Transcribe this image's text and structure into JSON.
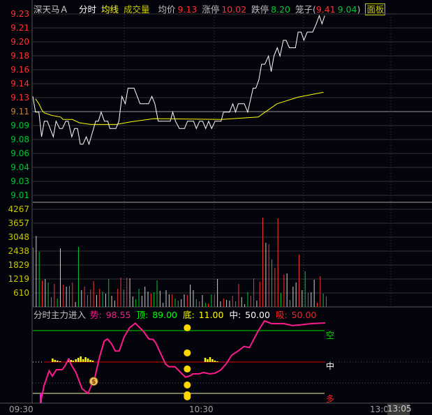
{
  "header": {
    "stock_name": "深天马Ａ",
    "mode": "分时",
    "avg_line_label": "均线",
    "volume_label": "成交量",
    "avg_price_label": "均价",
    "avg_price": "9.13",
    "limit_up_label": "涨停",
    "limit_up": "10.02",
    "limit_down_label": "跌停",
    "limit_down": "8.20",
    "cage_label": "笼子(",
    "cage_high": "9.41",
    "cage_low": "9.04",
    "cage_close": ")",
    "panel_button": "面板"
  },
  "colors": {
    "up": "#ff3232",
    "down": "#00c832",
    "flat": "#d0d0d0",
    "price_line": "#ffffff",
    "avg_line": "#ffff00",
    "indicator_line": "#ff1a8c",
    "top_line": "#00e000",
    "mid_line": "#e00000",
    "bottom_line": "#ffff00"
  },
  "price_axis": [
    "9.23",
    "9.21",
    "9.20",
    "9.18",
    "9.16",
    "9.14",
    "9.13",
    "9.11",
    "9.09",
    "9.08",
    "9.06",
    "9.04",
    "9.03",
    "9.01"
  ],
  "volume_axis": [
    "4267",
    "3657",
    "3048",
    "2438",
    "1829",
    "1219",
    "610"
  ],
  "time_axis": {
    "labels": [
      "09:30",
      "10:30",
      "13:0"
    ],
    "cursor_time": "13:05"
  },
  "indicator": {
    "title": "分时主力进入",
    "trend_label": "势:",
    "trend_value": "98.55",
    "top_label": "顶:",
    "top_value": "89.00",
    "bottom_label": "底:",
    "bottom_value": "11.00",
    "mid_label": "中:",
    "mid_value": "50.00",
    "absorb_label": "吸:",
    "absorb_value": "50.00",
    "side_labels": [
      "空",
      "中",
      "多"
    ],
    "series": [
      [
        2.6,
        0
      ],
      [
        3.7,
        20.3
      ],
      [
        5.4,
        39
      ],
      [
        6.5,
        32.4
      ],
      [
        7.8,
        40.5
      ],
      [
        9.7,
        40.5
      ],
      [
        10.6,
        44.8
      ],
      [
        11.8,
        53.5
      ],
      [
        13,
        44.8
      ],
      [
        14.2,
        37.6
      ],
      [
        16.3,
        16.8
      ],
      [
        18.3,
        11
      ],
      [
        20.6,
        31.8
      ],
      [
        22,
        54.9
      ],
      [
        23.6,
        75.7
      ],
      [
        24.7,
        78.6
      ],
      [
        26.1,
        72.3
      ],
      [
        27.3,
        63.6
      ],
      [
        28.6,
        63.6
      ],
      [
        30.2,
        80.9
      ],
      [
        32,
        92.5
      ],
      [
        33.9,
        98.3
      ],
      [
        36.6,
        88.1
      ],
      [
        38.4,
        78.6
      ],
      [
        39.8,
        78
      ],
      [
        40.7,
        73.7
      ],
      [
        43.9,
        47.7
      ],
      [
        45,
        44.2
      ],
      [
        47,
        44.2
      ],
      [
        50.5,
        31.2
      ],
      [
        52.1,
        32.9
      ],
      [
        53,
        35.3
      ],
      [
        55,
        35.3
      ],
      [
        56.5,
        37
      ],
      [
        58.5,
        35.3
      ],
      [
        60.3,
        36.1
      ],
      [
        62.1,
        39.9
      ],
      [
        64,
        47.7
      ],
      [
        65.8,
        58.4
      ],
      [
        68.1,
        64.1
      ],
      [
        69.9,
        69.3
      ],
      [
        71.7,
        67.9
      ],
      [
        74.5,
        88.1
      ],
      [
        76.7,
        101.1
      ],
      [
        79,
        97.7
      ],
      [
        83.1,
        97.7
      ],
      [
        85.9,
        95.3
      ],
      [
        88.6,
        96.2
      ],
      [
        92.2,
        97.7
      ],
      [
        96.8,
        98.5
      ]
    ],
    "signal_bars": [
      [
        6.5,
        5
      ],
      [
        7.3,
        3
      ],
      [
        8.1,
        2
      ],
      [
        9,
        1
      ],
      [
        11.8,
        5
      ],
      [
        12.6,
        3
      ],
      [
        13.3,
        2
      ],
      [
        14.2,
        4
      ],
      [
        15,
        6
      ],
      [
        15.8,
        8
      ],
      [
        16.6,
        4
      ],
      [
        17.4,
        7
      ],
      [
        18.2,
        5
      ],
      [
        19,
        3
      ],
      [
        19.8,
        2
      ],
      [
        57,
        6
      ],
      [
        57.8,
        4
      ],
      [
        58.6,
        7
      ],
      [
        59.4,
        4
      ],
      [
        60.2,
        2
      ],
      [
        61,
        1
      ]
    ],
    "signal_dots": {
      "minute": 51,
      "values": [
        92.5,
        61.3,
        41.3,
        21.4,
        9.3,
        6.7
      ]
    },
    "money_bag": {
      "minute": 20,
      "value": 26
    },
    "reference_dotted": 24
  },
  "chart_data": {
    "type": "line",
    "price_series": [
      [
        0,
        9.13
      ],
      [
        0.9,
        9.111
      ],
      [
        2,
        9.111
      ],
      [
        2.9,
        9.081
      ],
      [
        3.8,
        9.1
      ],
      [
        4.8,
        9.1
      ],
      [
        6.8,
        9.081
      ],
      [
        7.7,
        9.1
      ],
      [
        8.9,
        9.091
      ],
      [
        9.8,
        9.091
      ],
      [
        10.9,
        9.1
      ],
      [
        11.7,
        9.1
      ],
      [
        12.9,
        9.081
      ],
      [
        13.8,
        9.091
      ],
      [
        14.8,
        9.091
      ],
      [
        15.7,
        9.072
      ],
      [
        16.6,
        9.072
      ],
      [
        17.7,
        9.081
      ],
      [
        18.6,
        9.072
      ],
      [
        20.8,
        9.1
      ],
      [
        21.7,
        9.1
      ],
      [
        22.6,
        9.111
      ],
      [
        23.7,
        9.1
      ],
      [
        24.8,
        9.1
      ],
      [
        25.5,
        9.091
      ],
      [
        27.5,
        9.091
      ],
      [
        28.5,
        9.1
      ],
      [
        29.5,
        9.13
      ],
      [
        30.6,
        9.121
      ],
      [
        31.5,
        9.14
      ],
      [
        33.5,
        9.14
      ],
      [
        35.5,
        9.121
      ],
      [
        38.3,
        9.121
      ],
      [
        39.4,
        9.13
      ],
      [
        40.4,
        9.121
      ],
      [
        41.5,
        9.1
      ],
      [
        45.5,
        9.1
      ],
      [
        46.3,
        9.111
      ],
      [
        47.2,
        9.1
      ],
      [
        48.5,
        9.091
      ],
      [
        50.2,
        9.091
      ],
      [
        51.2,
        9.1
      ],
      [
        53.2,
        9.1
      ],
      [
        54.1,
        9.091
      ],
      [
        55.2,
        9.1
      ],
      [
        56.2,
        9.1
      ],
      [
        57.2,
        9.091
      ],
      [
        58.2,
        9.1
      ],
      [
        59.2,
        9.091
      ],
      [
        60.3,
        9.1
      ],
      [
        62.3,
        9.1
      ],
      [
        63.1,
        9.111
      ],
      [
        65.1,
        9.111
      ],
      [
        66.2,
        9.121
      ],
      [
        67.1,
        9.111
      ],
      [
        68,
        9.121
      ],
      [
        70,
        9.121
      ],
      [
        71.1,
        9.111
      ],
      [
        72.9,
        9.14
      ],
      [
        73.8,
        9.14
      ],
      [
        74.8,
        9.15
      ],
      [
        75.7,
        9.169
      ],
      [
        76.8,
        9.169
      ],
      [
        78,
        9.179
      ],
      [
        78.9,
        9.16
      ],
      [
        79.8,
        9.179
      ],
      [
        80.9,
        9.189
      ],
      [
        81.8,
        9.179
      ],
      [
        82.9,
        9.198
      ],
      [
        83.8,
        9.198
      ],
      [
        84.9,
        9.189
      ],
      [
        86.9,
        9.189
      ],
      [
        87.8,
        9.208
      ],
      [
        88.8,
        9.208
      ],
      [
        89.7,
        9.198
      ],
      [
        90.8,
        9.208
      ],
      [
        92.6,
        9.208
      ],
      [
        93.7,
        9.217
      ],
      [
        94.8,
        9.228
      ],
      [
        95.7,
        9.218
      ],
      [
        96.6,
        9.228
      ]
    ],
    "avg_series": [
      [
        0.9,
        9.127
      ],
      [
        2,
        9.121
      ],
      [
        3.1,
        9.113
      ],
      [
        3.8,
        9.11
      ],
      [
        6.2,
        9.107
      ],
      [
        9.2,
        9.105
      ],
      [
        10,
        9.102
      ],
      [
        13.1,
        9.102
      ],
      [
        15.4,
        9.098
      ],
      [
        19.2,
        9.096
      ],
      [
        27.7,
        9.096
      ],
      [
        32.3,
        9.099
      ],
      [
        40,
        9.103
      ],
      [
        62.3,
        9.102
      ],
      [
        74.6,
        9.105
      ],
      [
        77.7,
        9.113
      ],
      [
        80.8,
        9.121
      ],
      [
        87.7,
        9.129
      ],
      [
        96.2,
        9.135
      ]
    ],
    "volumes": [
      2593,
      3101,
      2410,
      1149,
      1220,
      1068,
      427,
      1007,
      366,
      2562,
      976,
      885,
      915,
      1068,
      214,
      2623,
      732,
      885,
      519,
      763,
      1129,
      519,
      793,
      671,
      580,
      1220,
      488,
      275,
      793,
      1281,
      763,
      1281,
      1251,
      458,
      336,
      793,
      488,
      885,
      671,
      580,
      641,
      1159,
      702,
      183,
      732,
      549,
      549,
      366,
      275,
      336,
      549,
      519,
      976,
      732,
      336,
      244,
      519,
      183,
      153,
      549,
      549,
      1220,
      244,
      366,
      305,
      275,
      488,
      244,
      1007,
      427,
      122,
      641,
      488,
      1251,
      275,
      1098,
      3904,
      2806,
      2745,
      2074,
      1708,
      3874,
      610,
      1403,
      1464,
      305,
      885,
      1068,
      2288,
      732,
      1556,
      610,
      641,
      1190,
      183,
      1342,
      580,
      458
    ],
    "volume_dirs": "gwgrwggrgwrwgrwgwrgrrwrgwgwwrrgrwwggwwwrggwwwwrggwwrwwgrwgrgrwwrwwrgrwwgrrwrrwrgrrgrwgwwrwgrwwrrgr",
    "price_range": [
      9.01,
      9.23
    ],
    "volume_range": [
      0,
      4267
    ],
    "x_range_minutes": [
      0,
      120
    ]
  }
}
